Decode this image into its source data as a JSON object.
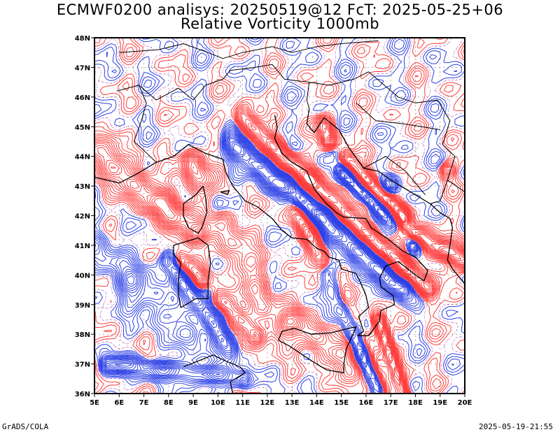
{
  "title_line1": "ECMWF0200 analisys: 20250519@12 FcT: 2025-05-25+06",
  "title_line2": "Relative Vorticity 1000mb",
  "footer_left": "GrADS/COLA",
  "footer_right": "2025-05-19-21:55",
  "map": {
    "lon_range": [
      5,
      20
    ],
    "lat_range": [
      36,
      48
    ],
    "lon_ticks": [
      "5E",
      "6E",
      "7E",
      "8E",
      "9E",
      "10E",
      "11E",
      "12E",
      "13E",
      "14E",
      "15E",
      "16E",
      "17E",
      "18E",
      "19E",
      "20E"
    ],
    "lat_ticks": [
      "36N",
      "37N",
      "38N",
      "39N",
      "40N",
      "41N",
      "42N",
      "43N",
      "44N",
      "45N",
      "46N",
      "47N",
      "48N"
    ],
    "colors": {
      "positive": "#ff3b3b",
      "negative": "#2b3fe6",
      "coast": "#000000",
      "grid": "#7a7a7a"
    }
  }
}
